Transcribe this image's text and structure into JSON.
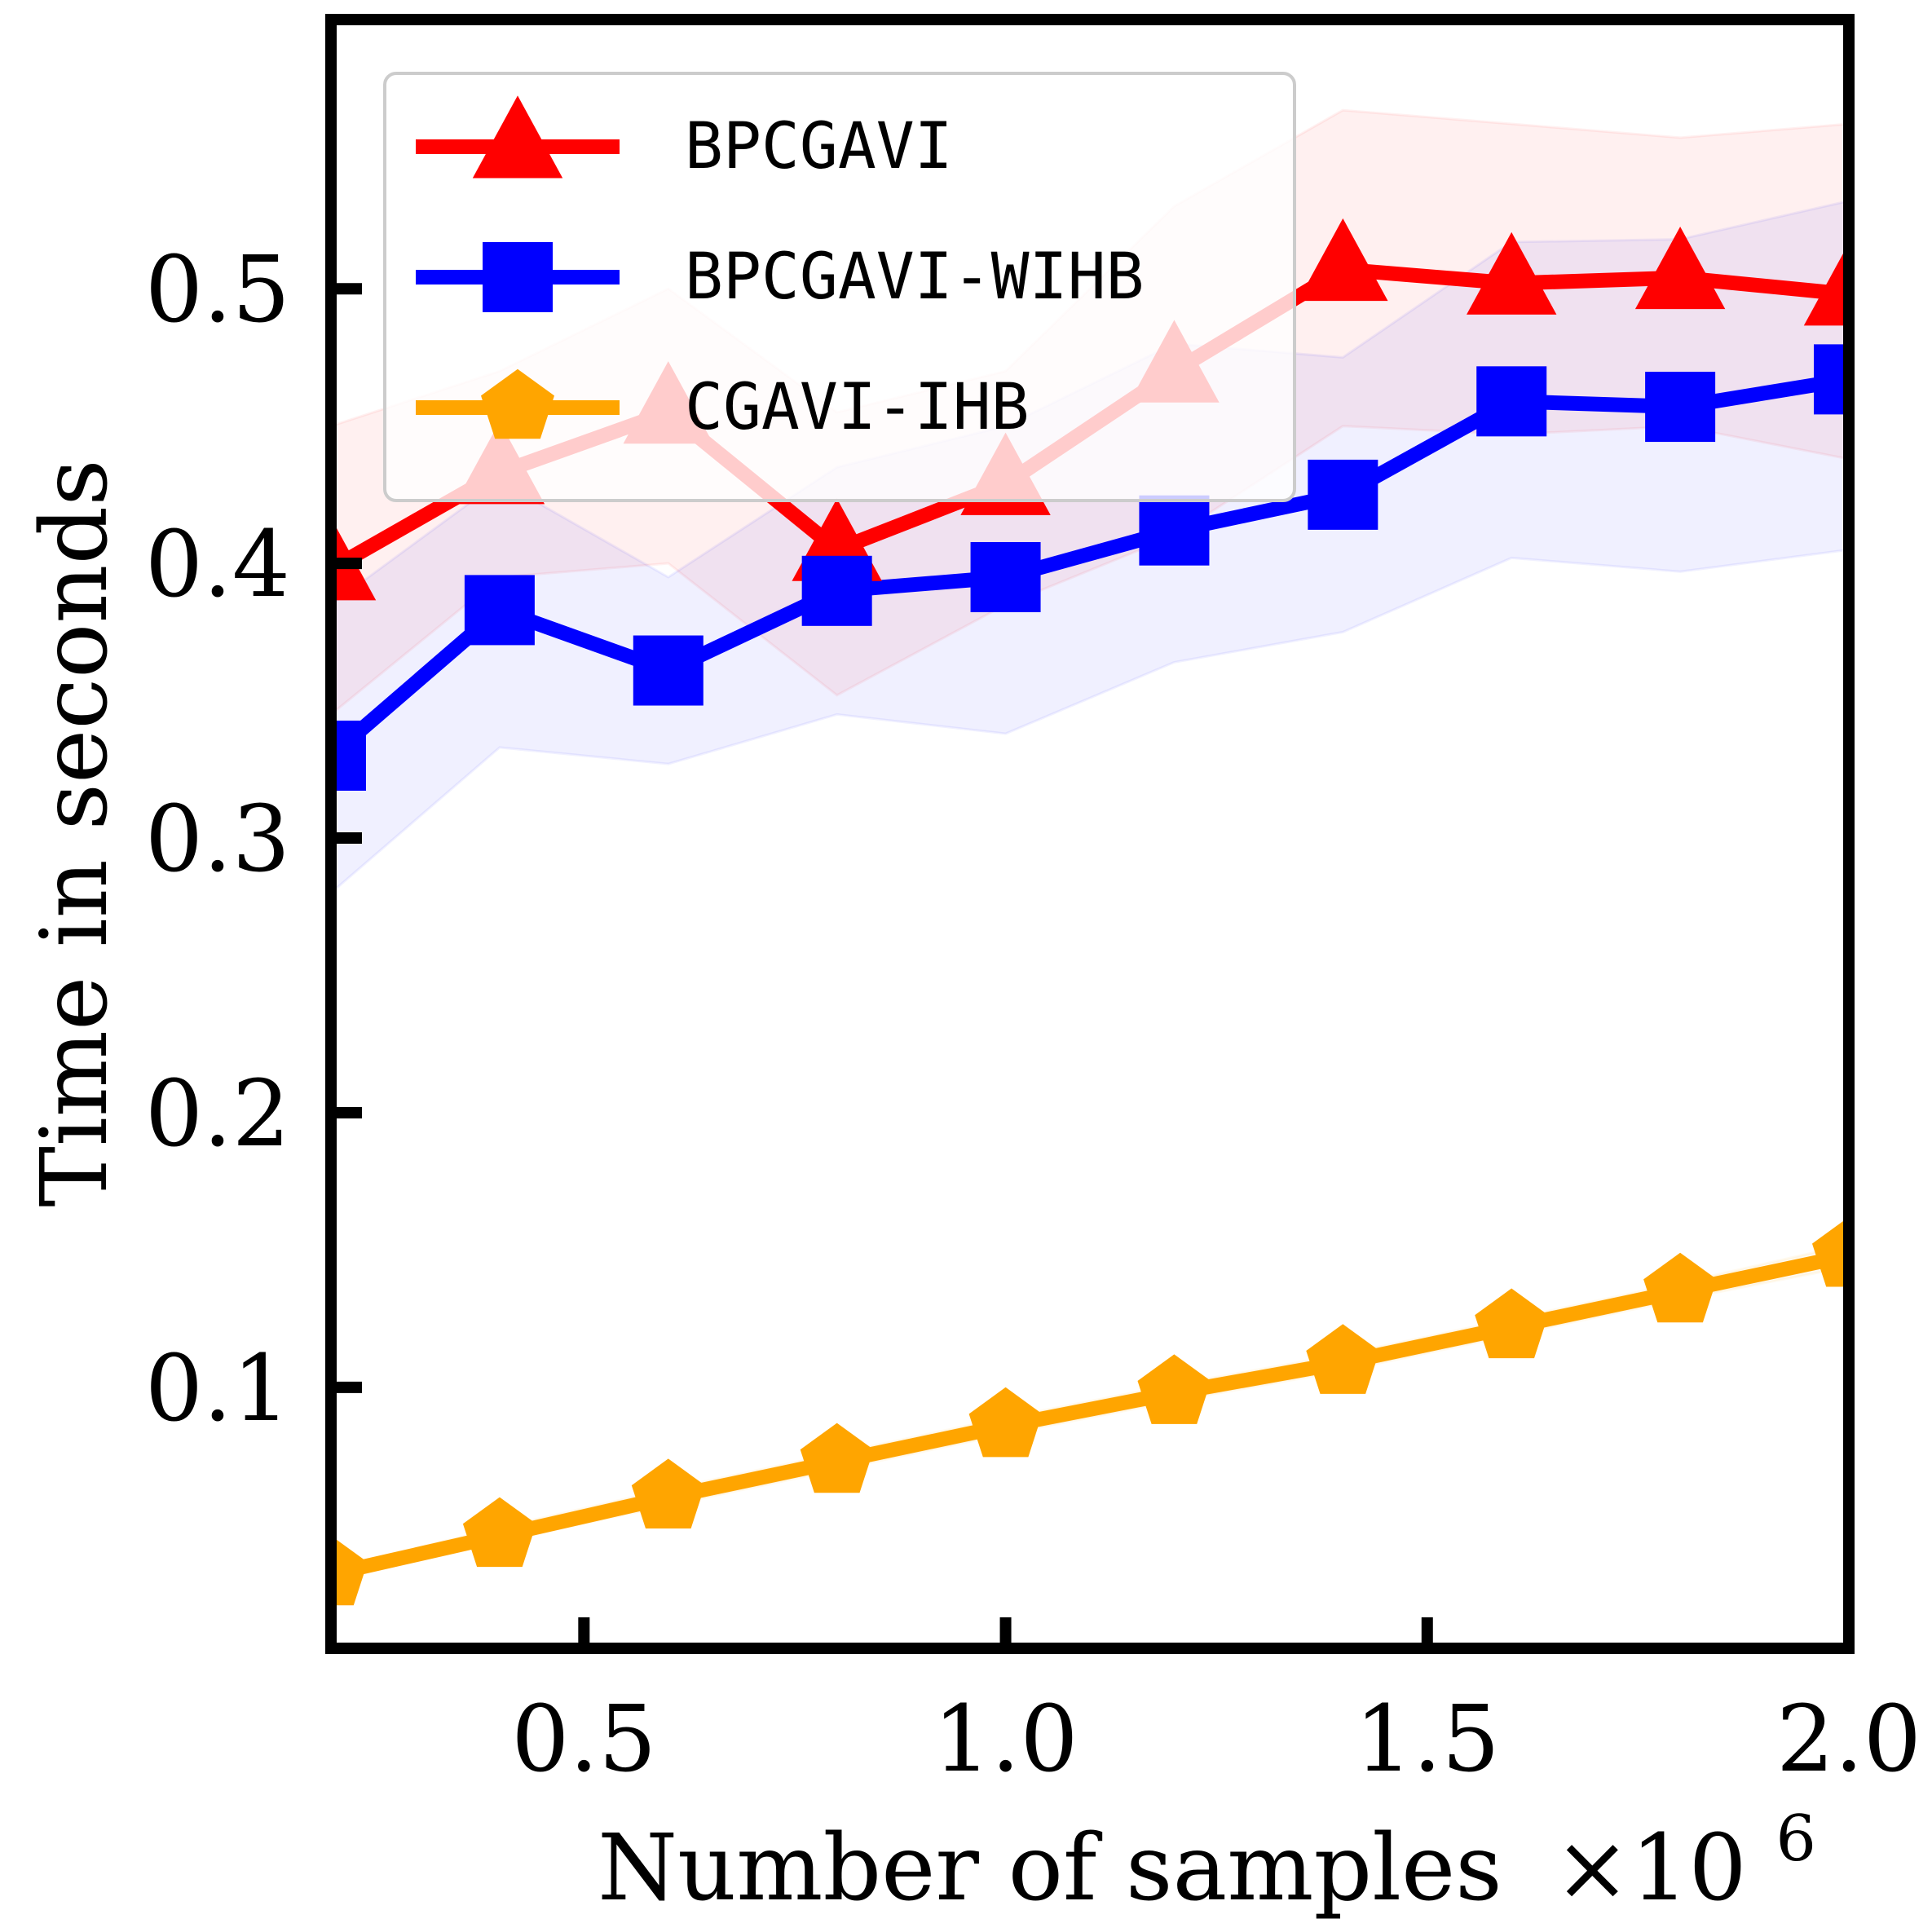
{
  "chart_data": {
    "type": "line",
    "xlabel": "Number of samples",
    "x_multiplier": "×10",
    "x_multiplier_exp": "6",
    "ylabel": "Time in seconds",
    "xlim": [
      0.2,
      2.0
    ],
    "ylim": [
      0.005,
      0.598
    ],
    "x_ticks": [
      0.5,
      1.0,
      1.5,
      2.0
    ],
    "x_tick_labels": [
      "0.5",
      "1.0",
      "1.5",
      "2.0"
    ],
    "y_ticks": [
      0.1,
      0.2,
      0.3,
      0.4,
      0.5
    ],
    "y_tick_labels": [
      "0.1",
      "0.2",
      "0.3",
      "0.4",
      "0.5"
    ],
    "legend_position": "top-left",
    "x": [
      0.2,
      0.4,
      0.6,
      0.8,
      1.0,
      1.2,
      1.4,
      1.6,
      1.8,
      2.0
    ],
    "series": [
      {
        "name": "BPCGAVI",
        "color": "#ff0000",
        "marker": "triangle",
        "values": [
          0.398,
          0.433,
          0.455,
          0.405,
          0.429,
          0.47,
          0.507,
          0.502,
          0.504,
          0.498
        ],
        "upper": [
          0.45,
          0.47,
          0.5,
          0.455,
          0.47,
          0.53,
          0.565,
          0.56,
          0.555,
          0.56
        ],
        "lower": [
          0.345,
          0.395,
          0.4,
          0.352,
          0.385,
          0.41,
          0.45,
          0.447,
          0.45,
          0.438
        ]
      },
      {
        "name": "BPCGAVI-WIHB",
        "color": "#0000ff",
        "marker": "square",
        "values": [
          0.33,
          0.383,
          0.361,
          0.39,
          0.395,
          0.412,
          0.425,
          0.459,
          0.457,
          0.467
        ],
        "upper": [
          0.385,
          0.43,
          0.395,
          0.435,
          0.45,
          0.48,
          0.475,
          0.517,
          0.518,
          0.532
        ],
        "lower": [
          0.28,
          0.333,
          0.327,
          0.345,
          0.338,
          0.364,
          0.375,
          0.402,
          0.397,
          0.405
        ]
      },
      {
        "name": "CGAVI-IHB",
        "color": "#ffa500",
        "marker": "pentagon",
        "values": [
          0.032,
          0.046,
          0.06,
          0.073,
          0.086,
          0.098,
          0.109,
          0.122,
          0.135,
          0.148
        ],
        "upper": [
          0.034,
          0.049,
          0.063,
          0.076,
          0.089,
          0.101,
          0.112,
          0.125,
          0.138,
          0.152
        ],
        "lower": [
          0.03,
          0.044,
          0.057,
          0.07,
          0.083,
          0.095,
          0.106,
          0.119,
          0.132,
          0.144
        ]
      }
    ]
  }
}
